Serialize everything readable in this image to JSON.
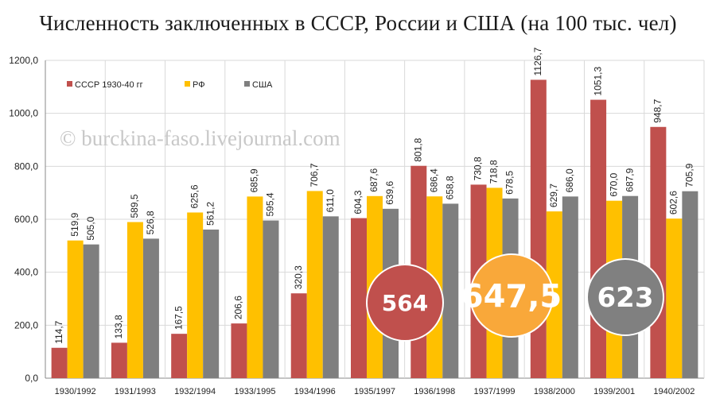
{
  "chart_data": {
    "type": "bar",
    "title": "Численность заключенных в СССР, России и США (на 100 тыс. чел)",
    "categories": [
      "1930/1992",
      "1931/1993",
      "1932/1994",
      "1933/1995",
      "1934/1996",
      "1935/1997",
      "1936/1998",
      "1937/1999",
      "1938/2000",
      "1939/2001",
      "1940/2002"
    ],
    "series": [
      {
        "name": "СССР 1930-40 гг",
        "color": "#c0504d",
        "values": [
          114.7,
          133.8,
          167.5,
          206.6,
          320.3,
          604.3,
          801.8,
          730.8,
          1126.7,
          1051.3,
          948.7
        ],
        "labels": [
          "114,7",
          "133,8",
          "167,5",
          "206,6",
          "320,3",
          "604,3",
          "801,8",
          "730,8",
          "1126,7",
          "1051,3",
          "948,7"
        ]
      },
      {
        "name": "РФ",
        "color": "#ffc000",
        "values": [
          519.9,
          589.5,
          625.6,
          685.9,
          706.7,
          687.6,
          686.4,
          718.8,
          629.7,
          670.0,
          602.6
        ],
        "labels": [
          "519,9",
          "589,5",
          "625,6",
          "685,9",
          "706,7",
          "687,6",
          "686,4",
          "718,8",
          "629,7",
          "670,0",
          "602,6"
        ]
      },
      {
        "name": "США",
        "color": "#7f7f7f",
        "values": [
          505.0,
          526.8,
          561.2,
          595.4,
          611.0,
          639.6,
          658.8,
          678.5,
          686.0,
          687.9,
          705.9
        ],
        "labels": [
          "505,0",
          "526,8",
          "561,2",
          "595,4",
          "611,0",
          "639,6",
          "658,8",
          "678,5",
          "686,0",
          "687,9",
          "705,9"
        ]
      }
    ],
    "ylim": [
      0,
      1200
    ],
    "yticks": [
      0,
      200,
      400,
      600,
      800,
      1000,
      1200
    ],
    "ytick_labels": [
      "0,0",
      "200,0",
      "400,0",
      "600,0",
      "800,0",
      "1000,0",
      "1200,0"
    ],
    "grid": true,
    "legend_position": "top-left",
    "watermark": "© burckina-faso.livejournal.com",
    "badges": [
      {
        "text": "564",
        "color": "#c0504d"
      },
      {
        "text": "647,5",
        "color": "#f9a83a"
      },
      {
        "text": "623",
        "color": "#808080"
      }
    ]
  }
}
